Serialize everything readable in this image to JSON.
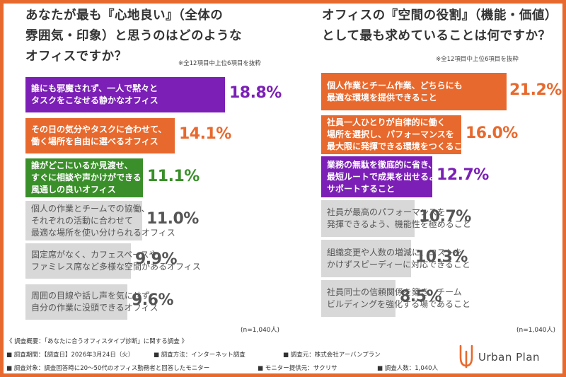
{
  "colors": {
    "purple": "#7b1fb6",
    "orange": "#e8692d",
    "green": "#3a8f2a",
    "gray": "#d8d8d8",
    "gray_text": "#555555",
    "value_gray": "#555555"
  },
  "left": {
    "title": "あなたが最も『心地良い』（全体の\n雰囲気・印象）と思うのはどのような\nオフィスですか？",
    "note": "※全12項目中上位6項目を抜粋",
    "n_note": "(n=1,040人)"
  },
  "right": {
    "title": "オフィスの『空間の役割』（機能・価値）\nとして最も求めていることは何ですか？",
    "note": "※全12項目中上位6項目を抜粋",
    "n_note": "(n=1,040人)"
  },
  "chart_data": [
    {
      "type": "bar",
      "orientation": "horizontal",
      "title": "あなたが最も『心地良い』（全体の雰囲気・印象）と思うのはどのようなオフィスですか？",
      "categories": [
        "誰にも邪魔されず、一人で黙々と\nタスクをこなせる静かなオフィス",
        "その日の気分やタスクに合わせて、\n働く場所を自由に選べるオフィス",
        "誰がどこにいるか見渡せ、\nすぐに相談や声かけができる\n風通しの良いオフィス",
        "個人の作業とチームでの協働、\nそれぞれの活動に合わせて\n最適な場所を使い分けられるオフィス",
        "固定席がなく、カフェスペースや\nファミレス席など多様な空間があるオフィス",
        "周囲の目線や話し声を気にせず、\n自分の作業に没頭できるオフィス"
      ],
      "values": [
        18.8,
        14.1,
        11.1,
        11.0,
        9.9,
        9.6
      ],
      "value_labels": [
        "18.8%",
        "14.1%",
        "11.1%",
        "11.0%",
        "9.9%",
        "9.6%"
      ],
      "bar_colors": [
        "#7b1fb6",
        "#e8692d",
        "#3a8f2a",
        "#d8d8d8",
        "#d8d8d8",
        "#d8d8d8"
      ],
      "value_colors": [
        "#7b1fb6",
        "#e8692d",
        "#3a8f2a",
        "#555555",
        "#555555",
        "#555555"
      ],
      "label_colors": [
        "#ffffff",
        "#ffffff",
        "#ffffff",
        "#555555",
        "#555555",
        "#555555"
      ]
    },
    {
      "type": "bar",
      "orientation": "horizontal",
      "title": "オフィスの『空間の役割』（機能・価値）として最も求めていることは何ですか？",
      "categories": [
        "個人作業とチーム作業、どちらにも\n最適な環境を提供できること",
        "社員一人ひとりが自律的に働く\n場所を選択し、パフォーマンスを\n最大限に発揮できる環境をつくること",
        "業務の無駄を徹底的に省き、\n最短ルートで成果を出せるよう\nサポートすること",
        "社員が最高のパフォーマンスを\n発揮できるよう、機能性を極めること",
        "組織変更や人数の増減に、コストを\nかけずスピーディーに対応できること",
        "社員同士の信頼関係を築き、チーム\nビルディングを強化する場であること"
      ],
      "values": [
        21.2,
        16.0,
        12.7,
        10.7,
        10.3,
        8.5
      ],
      "value_labels": [
        "21.2%",
        "16.0%",
        "12.7%",
        "10.7%",
        "10.3%",
        "8.5%"
      ],
      "bar_colors": [
        "#e8692d",
        "#e8692d",
        "#7b1fb6",
        "#d8d8d8",
        "#d8d8d8",
        "#d8d8d8"
      ],
      "value_colors": [
        "#e8692d",
        "#e8692d",
        "#7b1fb6",
        "#555555",
        "#555555",
        "#555555"
      ],
      "label_colors": [
        "#ffffff",
        "#ffffff",
        "#ffffff",
        "#555555",
        "#555555",
        "#555555"
      ]
    }
  ],
  "footer": {
    "line1": "《 調査概要：「あなたに合うオフィスタイプ診断」に関する調査 》",
    "line2a": "■ 調査期間：【調査日】2026年3月24日（火）",
    "line2b": "■ 調査方法：インターネット調査",
    "line2c": "■ 調査元：株式会社アーバンプラン",
    "line3a": "■ 調査対象：調査回答時に20〜50代のオフィス勤務者と回答したモニター",
    "line3b": "■ モニター提供元：サクリサ",
    "line3c": "■ 調査人数：1,040人"
  },
  "logo": {
    "text": "Urban Plan"
  }
}
